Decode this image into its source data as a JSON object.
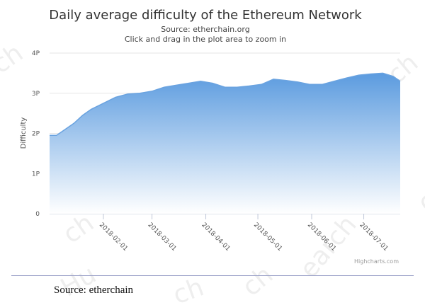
{
  "chart_data": {
    "type": "area",
    "title": "Daily average difficulty of the Ethereum Network",
    "subtitle_lines": [
      "Source: etherchain.org",
      "Click and drag in the plot area to zoom in"
    ],
    "ylabel": "Difficulty",
    "xlabel": "",
    "y_ticks": [
      {
        "label": "0",
        "value": 0
      },
      {
        "label": "1P",
        "value": 1
      },
      {
        "label": "2P",
        "value": 2
      },
      {
        "label": "3P",
        "value": 3
      },
      {
        "label": "4P",
        "value": 4
      }
    ],
    "ylim": [
      0,
      4
    ],
    "xlim": [
      "2018-01-01",
      "2018-07-22"
    ],
    "x_ticks": [
      "2018-02-01",
      "2018-03-01",
      "2018-04-01",
      "2018-05-01",
      "2018-06-01",
      "2018-07-01"
    ],
    "grid": true,
    "legend": "none",
    "fill_color_top": "#5b9bdf",
    "fill_color_bottom": "#ffffff",
    "line_color": "#6aa3e0",
    "series": [
      {
        "x": [
          "2018-01-01",
          "2018-01-05",
          "2018-01-10",
          "2018-01-15",
          "2018-01-20",
          "2018-01-25",
          "2018-02-01",
          "2018-02-08",
          "2018-02-15",
          "2018-02-22",
          "2018-03-01",
          "2018-03-08",
          "2018-03-15",
          "2018-03-22",
          "2018-03-29",
          "2018-04-05",
          "2018-04-12",
          "2018-04-19",
          "2018-04-26",
          "2018-05-03",
          "2018-05-10",
          "2018-05-17",
          "2018-05-24",
          "2018-05-31",
          "2018-06-07",
          "2018-06-14",
          "2018-06-21",
          "2018-06-28",
          "2018-07-05",
          "2018-07-12",
          "2018-07-18",
          "2018-07-22"
        ],
        "values": [
          1.95,
          1.95,
          2.1,
          2.25,
          2.45,
          2.6,
          2.75,
          2.9,
          2.98,
          3.0,
          3.05,
          3.15,
          3.2,
          3.25,
          3.3,
          3.25,
          3.15,
          3.15,
          3.18,
          3.22,
          3.35,
          3.32,
          3.28,
          3.22,
          3.22,
          3.3,
          3.38,
          3.45,
          3.48,
          3.5,
          3.42,
          3.3
        ]
      }
    ]
  },
  "credits": "Highcharts.com",
  "caption": "Source: etherchain",
  "watermark_texts": [
    "ch",
    "ch",
    "earch",
    "ch",
    "Hu",
    "ch",
    "ch",
    "ch"
  ]
}
